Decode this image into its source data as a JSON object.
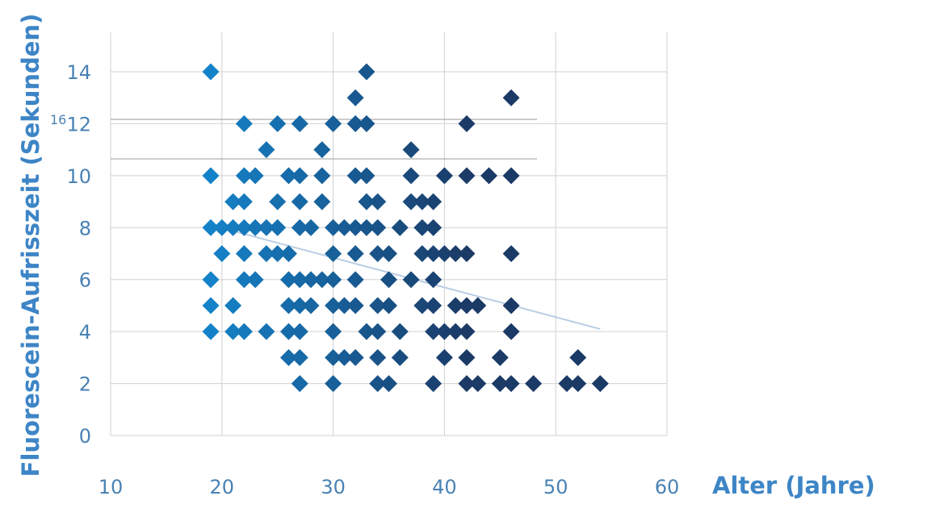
{
  "chart_data": {
    "type": "scatter",
    "xlabel": "Alter (Jahre)",
    "ylabel": "Fluorescein-Aufrisszeit (Sekunden)",
    "xlim": [
      10,
      60
    ],
    "ylim": [
      0,
      15.5
    ],
    "x_ticks": [
      10,
      20,
      30,
      40,
      50,
      60
    ],
    "y_ticks": [
      0,
      2,
      4,
      6,
      8,
      10,
      12,
      14
    ],
    "stray_tick_label": "16",
    "grid": true,
    "marker": "diamond",
    "color_gradient": [
      "#1482c8",
      "#1b3a66"
    ],
    "trendline": {
      "x": [
        19,
        54
      ],
      "y": [
        8.1,
        4.1
      ],
      "color": "#b9cde3"
    },
    "points": [
      [
        19,
        14
      ],
      [
        33,
        14
      ],
      [
        32,
        13
      ],
      [
        46,
        13
      ],
      [
        22,
        12
      ],
      [
        25,
        12
      ],
      [
        27,
        12
      ],
      [
        30,
        12
      ],
      [
        32,
        12
      ],
      [
        33,
        12
      ],
      [
        42,
        12
      ],
      [
        24,
        11
      ],
      [
        29,
        11
      ],
      [
        37,
        11
      ],
      [
        19,
        10
      ],
      [
        22,
        10
      ],
      [
        23,
        10
      ],
      [
        26,
        10
      ],
      [
        27,
        10
      ],
      [
        29,
        10
      ],
      [
        32,
        10
      ],
      [
        33,
        10
      ],
      [
        37,
        10
      ],
      [
        40,
        10
      ],
      [
        42,
        10
      ],
      [
        44,
        10
      ],
      [
        46,
        10
      ],
      [
        21,
        9
      ],
      [
        22,
        9
      ],
      [
        25,
        9
      ],
      [
        27,
        9
      ],
      [
        29,
        9
      ],
      [
        33,
        9
      ],
      [
        34,
        9
      ],
      [
        37,
        9
      ],
      [
        38,
        9
      ],
      [
        39,
        9
      ],
      [
        19,
        8
      ],
      [
        20,
        8
      ],
      [
        21,
        8
      ],
      [
        22,
        8
      ],
      [
        23,
        8
      ],
      [
        24,
        8
      ],
      [
        25,
        8
      ],
      [
        27,
        8
      ],
      [
        28,
        8
      ],
      [
        30,
        8
      ],
      [
        31,
        8
      ],
      [
        32,
        8
      ],
      [
        33,
        8
      ],
      [
        34,
        8
      ],
      [
        36,
        8
      ],
      [
        38,
        8
      ],
      [
        39,
        8
      ],
      [
        20,
        7
      ],
      [
        22,
        7
      ],
      [
        24,
        7
      ],
      [
        25,
        7
      ],
      [
        26,
        7
      ],
      [
        30,
        7
      ],
      [
        32,
        7
      ],
      [
        34,
        7
      ],
      [
        35,
        7
      ],
      [
        38,
        7
      ],
      [
        39,
        7
      ],
      [
        40,
        7
      ],
      [
        41,
        7
      ],
      [
        42,
        7
      ],
      [
        46,
        7
      ],
      [
        19,
        6
      ],
      [
        22,
        6
      ],
      [
        23,
        6
      ],
      [
        26,
        6
      ],
      [
        27,
        6
      ],
      [
        28,
        6
      ],
      [
        29,
        6
      ],
      [
        30,
        6
      ],
      [
        32,
        6
      ],
      [
        35,
        6
      ],
      [
        37,
        6
      ],
      [
        39,
        6
      ],
      [
        19,
        5
      ],
      [
        21,
        5
      ],
      [
        26,
        5
      ],
      [
        27,
        5
      ],
      [
        28,
        5
      ],
      [
        30,
        5
      ],
      [
        31,
        5
      ],
      [
        32,
        5
      ],
      [
        34,
        5
      ],
      [
        35,
        5
      ],
      [
        38,
        5
      ],
      [
        39,
        5
      ],
      [
        41,
        5
      ],
      [
        42,
        5
      ],
      [
        43,
        5
      ],
      [
        46,
        5
      ],
      [
        19,
        4
      ],
      [
        21,
        4
      ],
      [
        22,
        4
      ],
      [
        24,
        4
      ],
      [
        26,
        4
      ],
      [
        27,
        4
      ],
      [
        30,
        4
      ],
      [
        33,
        4
      ],
      [
        34,
        4
      ],
      [
        36,
        4
      ],
      [
        39,
        4
      ],
      [
        40,
        4
      ],
      [
        41,
        4
      ],
      [
        42,
        4
      ],
      [
        46,
        4
      ],
      [
        26,
        3
      ],
      [
        27,
        3
      ],
      [
        30,
        3
      ],
      [
        31,
        3
      ],
      [
        32,
        3
      ],
      [
        34,
        3
      ],
      [
        36,
        3
      ],
      [
        40,
        3
      ],
      [
        42,
        3
      ],
      [
        45,
        3
      ],
      [
        52,
        3
      ],
      [
        27,
        2
      ],
      [
        30,
        2
      ],
      [
        34,
        2
      ],
      [
        35,
        2
      ],
      [
        39,
        2
      ],
      [
        42,
        2
      ],
      [
        43,
        2
      ],
      [
        45,
        2
      ],
      [
        46,
        2
      ],
      [
        48,
        2
      ],
      [
        51,
        2
      ],
      [
        52,
        2
      ],
      [
        54,
        2
      ]
    ]
  }
}
